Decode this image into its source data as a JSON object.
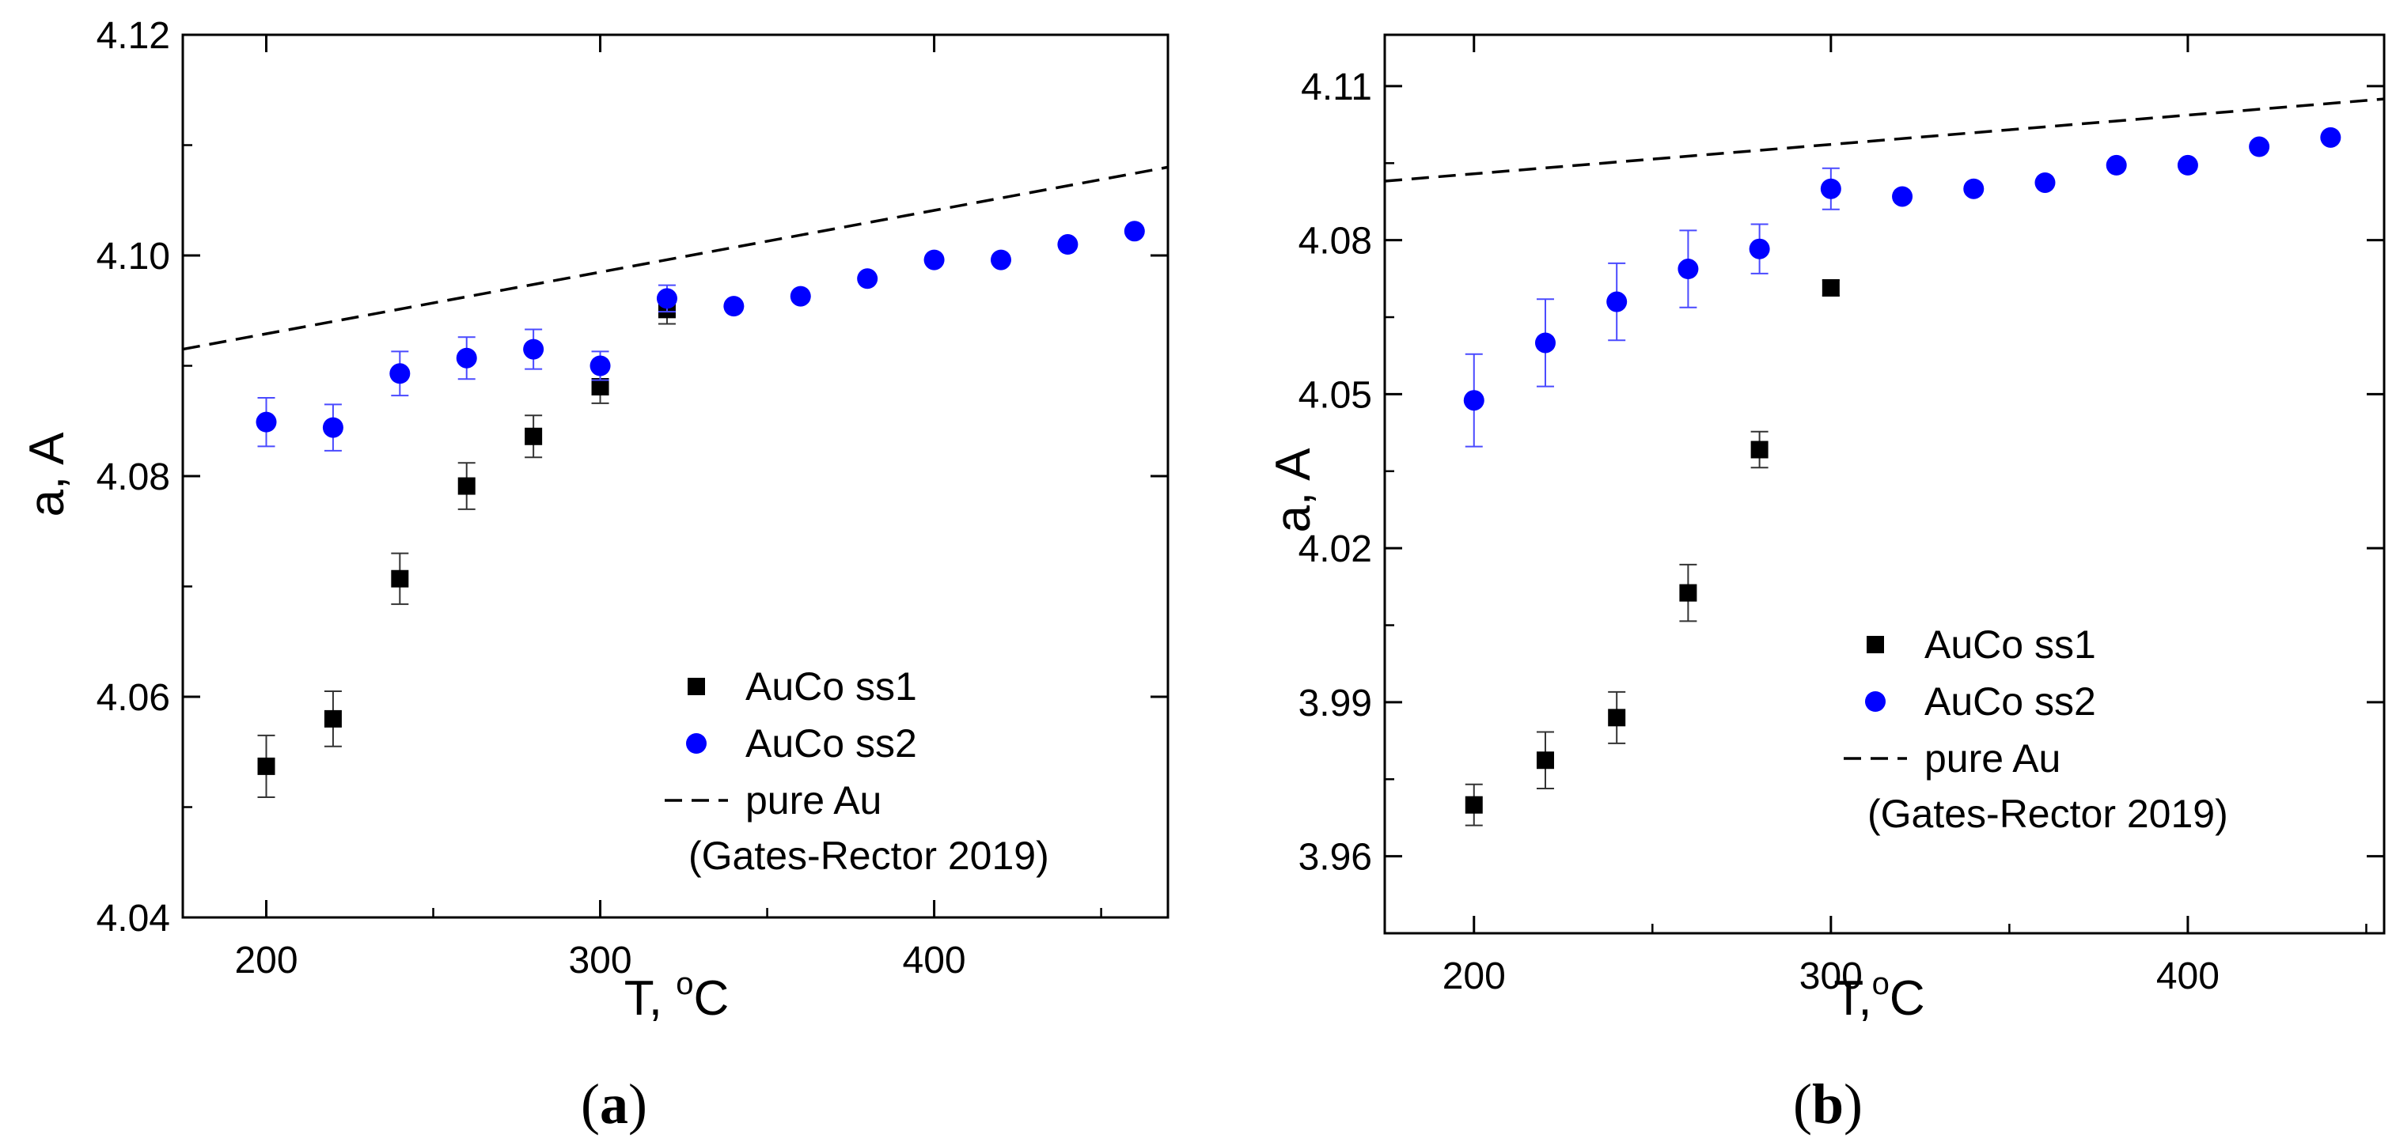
{
  "chart_data": [
    {
      "type": "scatter",
      "caption_open": "(",
      "caption_letter": "a",
      "caption_close": ")",
      "xlabel": "T, ",
      "xlabel_sup": "o",
      "xlabel_unit": "C",
      "ylabel": "a, A",
      "xlim": [
        175,
        470
      ],
      "ylim": [
        4.04,
        4.12
      ],
      "xticks": [
        200,
        300,
        400
      ],
      "yticks": [
        4.04,
        4.06,
        4.08,
        4.1,
        4.12
      ],
      "yticklabels": [
        "4.04",
        "4.06",
        "4.08",
        "4.10",
        "4.12"
      ],
      "legend_position": "bottom-right",
      "series": [
        {
          "name": "AuCo ss1",
          "marker": "square",
          "color": "#000000",
          "x": [
            200,
            220,
            240,
            260,
            280,
            300,
            320
          ],
          "y": [
            4.0537,
            4.058,
            4.0707,
            4.0791,
            4.0836,
            4.0881,
            4.0951
          ],
          "err": [
            0.0028,
            0.0025,
            0.0023,
            0.0021,
            0.0019,
            0.0015,
            0.0013
          ]
        },
        {
          "name": "AuCo ss2",
          "marker": "circle",
          "color": "#0000FF",
          "x": [
            200,
            220,
            240,
            260,
            280,
            300,
            320,
            340,
            360,
            380,
            400,
            420,
            440,
            460
          ],
          "y": [
            4.0849,
            4.0844,
            4.0893,
            4.0907,
            4.0915,
            4.09,
            4.0961,
            4.0954,
            4.0963,
            4.0979,
            4.0996,
            4.0996,
            4.101,
            4.1022
          ],
          "err": [
            0.0022,
            0.0021,
            0.002,
            0.0019,
            0.0018,
            0.0013,
            0.0012,
            0.0,
            0.0,
            0.0,
            0.0,
            0.0,
            0.0,
            0.0
          ]
        },
        {
          "name": "pure Au",
          "name_line2": "(Gates-Rector 2019)",
          "line": "dashed",
          "color": "#000000",
          "x": [
            175,
            470
          ],
          "y": [
            4.0915,
            4.108
          ]
        }
      ]
    },
    {
      "type": "scatter",
      "caption_open": "(",
      "caption_letter": "b",
      "caption_close": ")",
      "xlabel": "T,",
      "xlabel_sup": "o",
      "xlabel_unit": "C",
      "ylabel": "a, A",
      "xlim": [
        175,
        455
      ],
      "ylim": [
        3.945,
        4.12
      ],
      "xticks": [
        200,
        300,
        400
      ],
      "yticks": [
        3.96,
        3.99,
        4.02,
        4.05,
        4.08,
        4.11
      ],
      "yticklabels": [
        "3.96",
        "3.99",
        "4.02",
        "4.05",
        "4.08",
        "4.11"
      ],
      "legend_position": "bottom-right",
      "series": [
        {
          "name": "AuCo ss1",
          "marker": "square",
          "color": "#000000",
          "x": [
            200,
            220,
            240,
            260,
            280,
            300
          ],
          "y": [
            3.97,
            3.9787,
            3.987,
            4.0113,
            4.0392,
            4.0707
          ],
          "err": [
            0.004,
            0.0055,
            0.005,
            0.0055,
            0.0035,
            0.0015
          ]
        },
        {
          "name": "AuCo ss2",
          "marker": "circle",
          "color": "#0000FF",
          "x": [
            200,
            220,
            240,
            260,
            280,
            300,
            320,
            340,
            360,
            380,
            400,
            420,
            440
          ],
          "y": [
            4.0488,
            4.06,
            4.068,
            4.0744,
            4.0783,
            4.09,
            4.0885,
            4.09,
            4.0912,
            4.0946,
            4.0946,
            4.0982,
            4.1
          ],
          "err": [
            0.009,
            0.0085,
            0.0075,
            0.0075,
            0.0048,
            0.004,
            0.0,
            0.0,
            0.0,
            0.0,
            0.0,
            0.0,
            0.0
          ]
        },
        {
          "name": "pure Au",
          "name_line2": "(Gates-Rector 2019)",
          "line": "dashed",
          "color": "#000000",
          "x": [
            175,
            455
          ],
          "y": [
            4.0915,
            4.1075
          ]
        }
      ]
    }
  ]
}
